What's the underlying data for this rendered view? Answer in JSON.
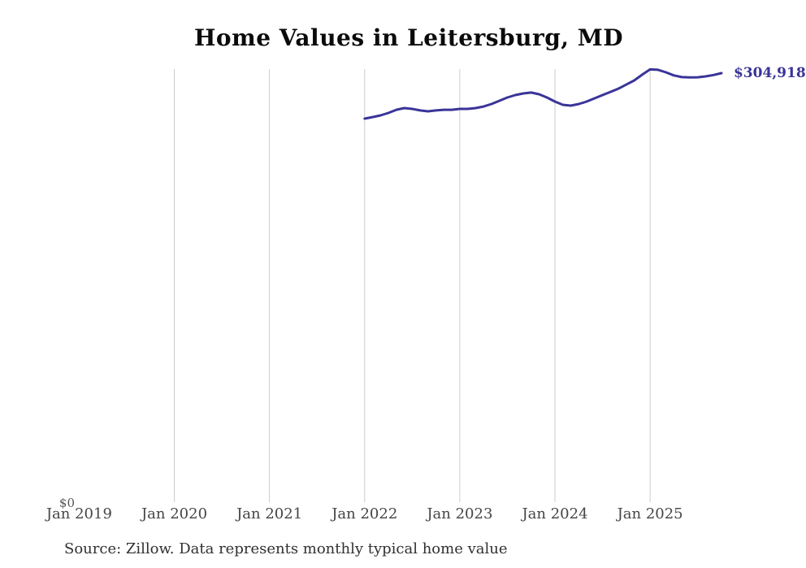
{
  "source_note": "Source: Zillow. Data represents monthly typical home value",
  "chart_data": {
    "type": "line",
    "title": "Home Values in Leitersburg, MD",
    "xlabel": "",
    "ylabel": "",
    "ylim": [
      0,
      310000
    ],
    "grid": true,
    "legend": "none",
    "y_zero_label": "$0",
    "end_value_label": "$304,918",
    "end_value": 304918,
    "line_color": "#3a3498",
    "gridline_color": "#cccccc",
    "title_color": "#0b0b0b",
    "tick_color": "#454545",
    "x_ticks": [
      "Jan 2019",
      "Jan 2020",
      "Jan 2021",
      "Jan 2022",
      "Jan 2023",
      "Jan 2024",
      "Jan 2025"
    ],
    "grid_years": [
      2020,
      2021,
      2022,
      2023,
      2024,
      2025
    ],
    "series": [
      {
        "name": "Monthly typical home value",
        "x": [
          "2022-01",
          "2022-02",
          "2022-03",
          "2022-04",
          "2022-05",
          "2022-06",
          "2022-07",
          "2022-08",
          "2022-09",
          "2022-10",
          "2022-11",
          "2022-12",
          "2023-01",
          "2023-02",
          "2023-03",
          "2023-04",
          "2023-05",
          "2023-06",
          "2023-07",
          "2023-08",
          "2023-09",
          "2023-10",
          "2023-11",
          "2023-12",
          "2024-01",
          "2024-02",
          "2024-03",
          "2024-04",
          "2024-05",
          "2024-06",
          "2024-07",
          "2024-08",
          "2024-09",
          "2024-10",
          "2024-11",
          "2024-12",
          "2025-01",
          "2025-02",
          "2025-03",
          "2025-04",
          "2025-05",
          "2025-06",
          "2025-07",
          "2025-08",
          "2025-09",
          "2025-10"
        ],
        "values": [
          272600,
          273700,
          274900,
          276600,
          278900,
          280100,
          279500,
          278400,
          277800,
          278400,
          278900,
          278900,
          279500,
          279500,
          280100,
          281200,
          283000,
          285300,
          287600,
          289300,
          290500,
          291100,
          289900,
          287600,
          284700,
          282400,
          281800,
          283000,
          284700,
          287000,
          289300,
          291600,
          293900,
          296800,
          299700,
          303800,
          307600,
          307300,
          305500,
          303300,
          302100,
          301900,
          302000,
          302600,
          303600,
          304918
        ]
      }
    ]
  }
}
